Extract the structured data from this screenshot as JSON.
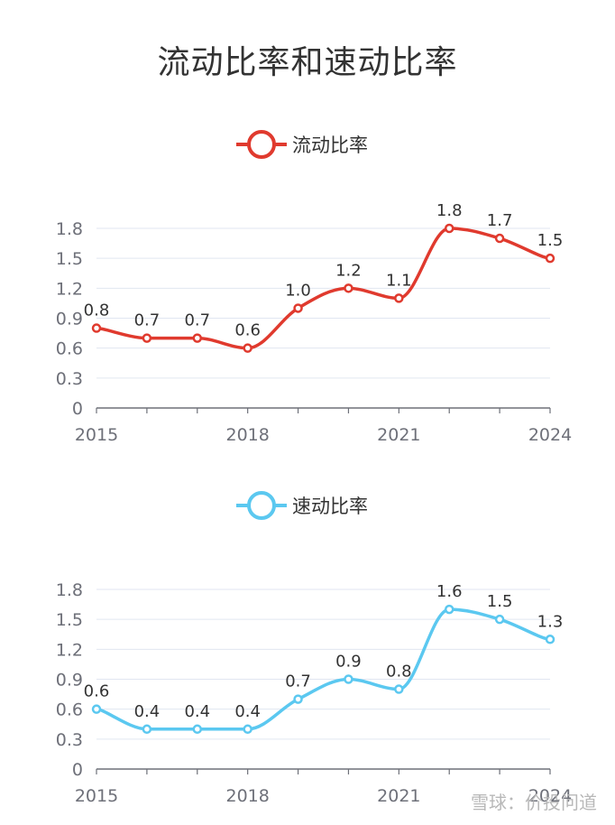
{
  "title": "流动比率和速动比率",
  "watermark": "雪球：价投问道",
  "chart_data": [
    {
      "type": "line",
      "smooth": true,
      "legend": "流动比率",
      "legend_placement": "top-center",
      "color": "#e03a2e",
      "x": [
        "2015",
        "2016",
        "2017",
        "2018",
        "2019",
        "2020",
        "2021",
        "2022",
        "2023",
        "2024"
      ],
      "x_tick_labels": [
        "2015",
        "2018",
        "2021",
        "2024"
      ],
      "y_tick_labels": [
        "0",
        "0.3",
        "0.6",
        "0.9",
        "1.2",
        "1.5",
        "1.8"
      ],
      "ylim": [
        0,
        1.8
      ],
      "grid": true,
      "series": [
        {
          "name": "流动比率",
          "values": [
            0.8,
            0.7,
            0.7,
            0.6,
            1.0,
            1.2,
            1.1,
            1.8,
            1.7,
            1.5
          ],
          "labels": [
            "0.8",
            "0.7",
            "0.7",
            "0.6",
            "1.0",
            "1.2",
            "1.1",
            "1.8",
            "1.7",
            "1.5"
          ]
        }
      ]
    },
    {
      "type": "line",
      "smooth": true,
      "legend": "速动比率",
      "legend_placement": "top-center",
      "color": "#5bc8f0",
      "x": [
        "2015",
        "2016",
        "2017",
        "2018",
        "2019",
        "2020",
        "2021",
        "2022",
        "2023",
        "2024"
      ],
      "x_tick_labels": [
        "2015",
        "2018",
        "2021",
        "2024"
      ],
      "y_tick_labels": [
        "0",
        "0.3",
        "0.6",
        "0.9",
        "1.2",
        "1.5",
        "1.8"
      ],
      "ylim": [
        0,
        1.8
      ],
      "grid": true,
      "series": [
        {
          "name": "速动比率",
          "values": [
            0.6,
            0.4,
            0.4,
            0.4,
            0.7,
            0.9,
            0.8,
            1.6,
            1.5,
            1.3
          ],
          "labels": [
            "0.6",
            "0.4",
            "0.4",
            "0.4",
            "0.7",
            "0.9",
            "0.8",
            "1.6",
            "1.5",
            "1.3"
          ]
        }
      ]
    }
  ]
}
